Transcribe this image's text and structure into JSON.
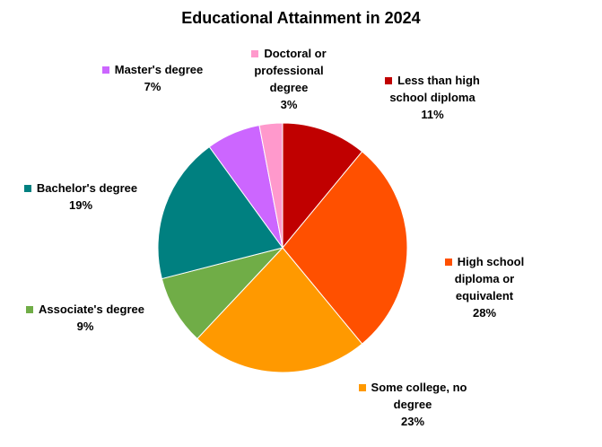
{
  "chart_data": {
    "type": "pie",
    "title": "Educational Attainment in 2024",
    "categories": [
      "Less than high school diploma",
      "High school diploma or equivalent",
      "Some college, no degree",
      "Associate's degree",
      "Bachelor's degree",
      "Master's degree",
      "Doctoral or professional degree"
    ],
    "values": [
      11,
      28,
      23,
      9,
      19,
      7,
      3
    ],
    "value_labels": [
      "11%",
      "28%",
      "23%",
      "9%",
      "19%",
      "7%",
      "3%"
    ],
    "colors": [
      "#c00000",
      "#ff5000",
      "#ff9900",
      "#70ad47",
      "#008080",
      "#cc66ff",
      "#ff99cc"
    ]
  }
}
